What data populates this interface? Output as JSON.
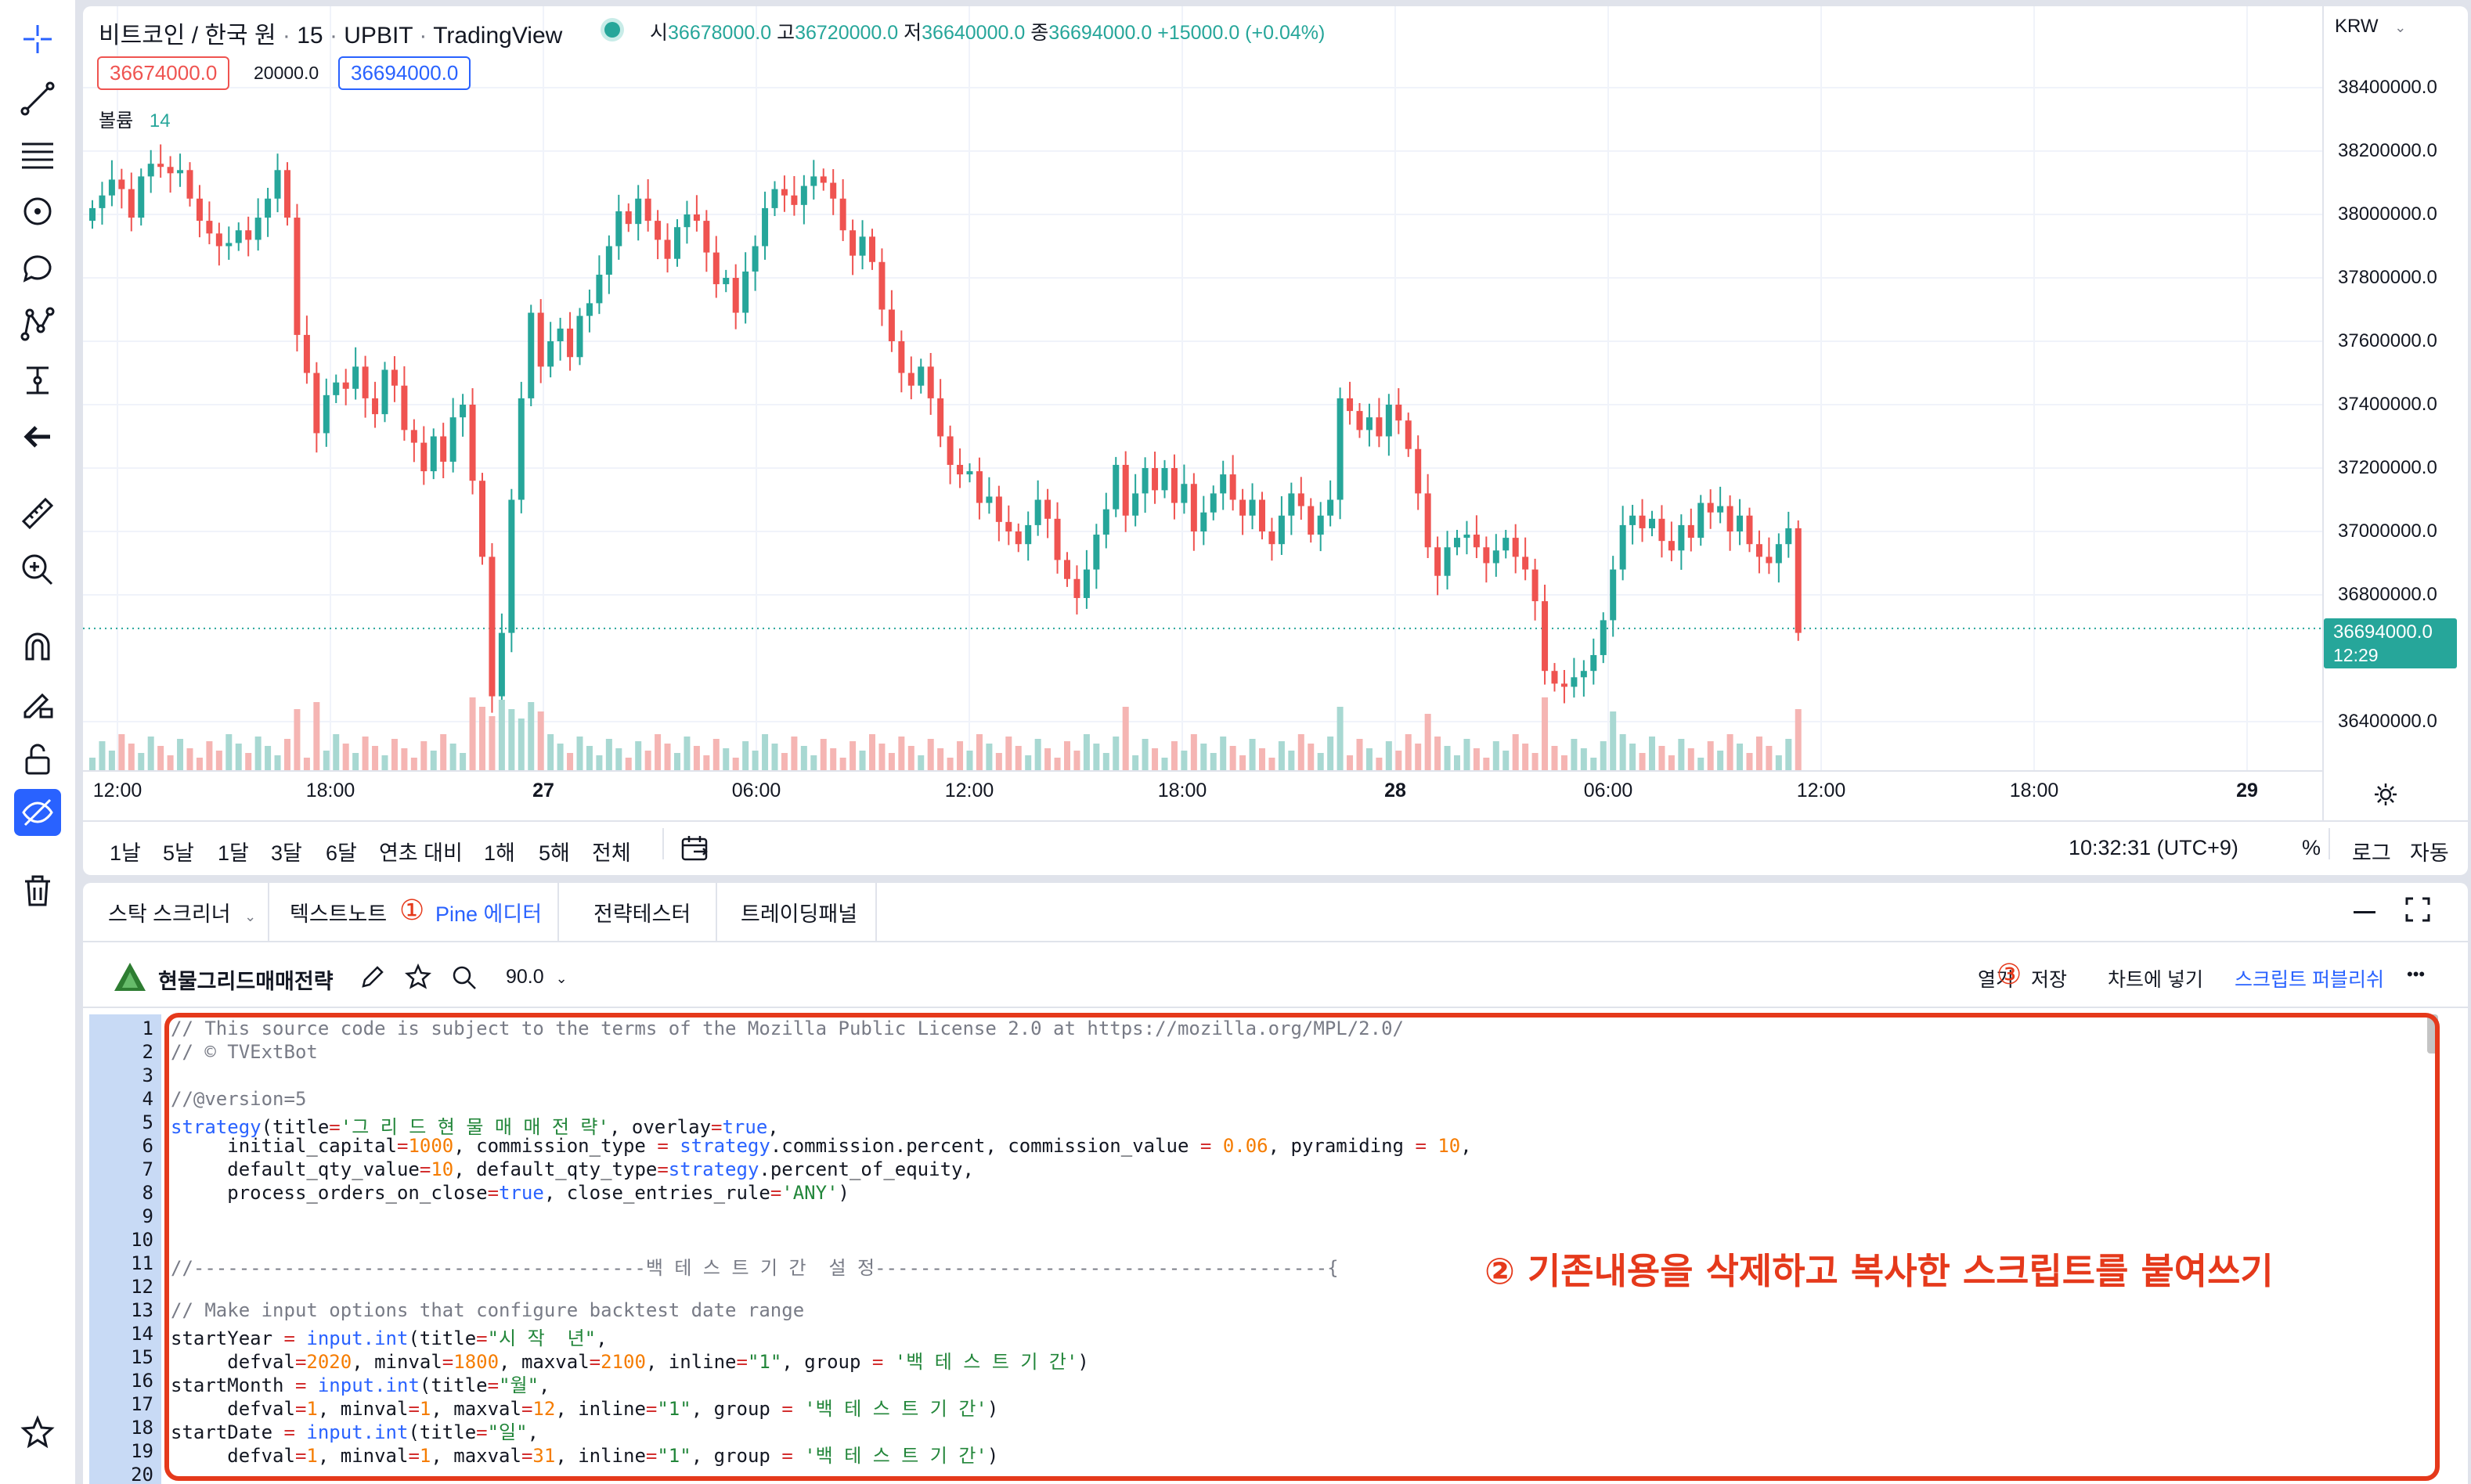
{
  "left_toolbar": {
    "icons": [
      "crosshair-icon",
      "trend-line-icon",
      "horizontal-lines-icon",
      "circle-dot-icon",
      "comment-icon",
      "pattern-icon",
      "measure-arrow-icon",
      "back-arrow-icon",
      "ruler-icon",
      "zoom-in-icon",
      "magnet-icon",
      "lock-pencil-icon",
      "unlock-icon",
      "eye-strike-icon",
      "trash-icon",
      "star-icon"
    ]
  },
  "chart": {
    "symbol_title": "비트코인 / 한국 원",
    "interval": "15",
    "exchange": "UPBIT",
    "source": "TradingView",
    "ohlc": {
      "open_label": "시",
      "open": "36678000.0",
      "high_label": "고",
      "high": "36720000.0",
      "low_label": "저",
      "low": "36640000.0",
      "close_label": "종",
      "close": "36694000.0",
      "change": "+15000.0 (+0.04%)"
    },
    "bid": "36674000.0",
    "spread": "20000.0",
    "ask": "36694000.0",
    "volume_label": "볼륨",
    "volume_value": "14",
    "currency": "KRW",
    "current_price": "36694000.0",
    "countdown": "12:29",
    "y_ticks": [
      "38400000.0",
      "38200000.0",
      "38000000.0",
      "37800000.0",
      "37600000.0",
      "37400000.0",
      "37200000.0",
      "37000000.0",
      "36800000.0",
      "36400000.0"
    ],
    "x_ticks": [
      {
        "label": "12:00",
        "bold": false
      },
      {
        "label": "18:00",
        "bold": false
      },
      {
        "label": "27",
        "bold": true
      },
      {
        "label": "06:00",
        "bold": false
      },
      {
        "label": "12:00",
        "bold": false
      },
      {
        "label": "18:00",
        "bold": false
      },
      {
        "label": "28",
        "bold": true
      },
      {
        "label": "06:00",
        "bold": false
      },
      {
        "label": "12:00",
        "bold": false
      },
      {
        "label": "18:00",
        "bold": false
      },
      {
        "label": "29",
        "bold": true
      }
    ],
    "ranges": [
      "1날",
      "5날",
      "1달",
      "3달",
      "6달",
      "연초 대비",
      "1해",
      "5해",
      "전체"
    ],
    "clock": "10:32:31 (UTC+9)",
    "percent_label": "%",
    "log_label": "로그",
    "auto_label": "자동",
    "colors": {
      "up": "#26a69a",
      "down": "#ef5350",
      "up_vol": "#a8d8d2",
      "down_vol": "#f5b5b3"
    }
  },
  "chart_data": {
    "type": "candlestick",
    "description_free": true,
    "y_axis_unit": "KRW",
    "ylim": [
      36300000,
      38500000
    ],
    "close_series": [
      38020000,
      38060000,
      38110000,
      38080000,
      37990000,
      38120000,
      38160000,
      38150000,
      38130000,
      38140000,
      38050000,
      37980000,
      37940000,
      37900000,
      37910000,
      37950000,
      37920000,
      37990000,
      38050000,
      38140000,
      37990000,
      37620000,
      37500000,
      37310000,
      37430000,
      37470000,
      37450000,
      37520000,
      37420000,
      37370000,
      37510000,
      37460000,
      37320000,
      37280000,
      37190000,
      37300000,
      37220000,
      37360000,
      37400000,
      37160000,
      36920000,
      36480000,
      36680000,
      37100000,
      37420000,
      37690000,
      37520000,
      37600000,
      37640000,
      37550000,
      37680000,
      37720000,
      37810000,
      37900000,
      38010000,
      37970000,
      38050000,
      37980000,
      37920000,
      37860000,
      37960000,
      38000000,
      37980000,
      37880000,
      37780000,
      37800000,
      37690000,
      37820000,
      37900000,
      38020000,
      38080000,
      38060000,
      38030000,
      38090000,
      38120000,
      38100000,
      38050000,
      37950000,
      37870000,
      37930000,
      37850000,
      37700000,
      37600000,
      37500000,
      37460000,
      37520000,
      37420000,
      37300000,
      37210000,
      37180000,
      37190000,
      37090000,
      37110000,
      37030000,
      37000000,
      36960000,
      37020000,
      37100000,
      37040000,
      36910000,
      36850000,
      36790000,
      36880000,
      36990000,
      37070000,
      37210000,
      37050000,
      37120000,
      37200000,
      37130000,
      37200000,
      37090000,
      37150000,
      37000000,
      37060000,
      37120000,
      37180000,
      37100000,
      37050000,
      37100000,
      37000000,
      36960000,
      37050000,
      37120000,
      37080000,
      36990000,
      37050000,
      37100000,
      37420000,
      37380000,
      37320000,
      37360000,
      37300000,
      37400000,
      37350000,
      37260000,
      37120000,
      36950000,
      36860000,
      36950000,
      36980000,
      36990000,
      36950000,
      36900000,
      36940000,
      36980000,
      36920000,
      36880000,
      36780000,
      36560000,
      36520000,
      36510000,
      36540000,
      36560000,
      36610000,
      36720000,
      36880000,
      37020000,
      37050000,
      37010000,
      37040000,
      36970000,
      36940000,
      37020000,
      36980000,
      37090000,
      37060000,
      37080000,
      37000000,
      37050000,
      36960000,
      36920000,
      36900000,
      36960000,
      37010000,
      36680000
    ]
  },
  "editor": {
    "tabs": [
      "스탁 스크리너",
      "텍스트노트",
      "Pine 에디터",
      "전략테스터",
      "트레이딩패널"
    ],
    "active_tab_index": 2,
    "marker_1": "①",
    "script_name": "현물그리드매매전략",
    "version": "90.0",
    "actions": {
      "open": "열기",
      "save": "저장",
      "add_to_chart": "차트에 넣기",
      "publish": "스크립트 퍼블리쉬",
      "more": "•••"
    },
    "marker_3": "③",
    "annotation": "② 기존내용을 삭제하고 복사한 스크립트를 붙여쓰기",
    "line_numbers": [
      "1",
      "2",
      "3",
      "4",
      "5",
      "6",
      "7",
      "8",
      "9",
      "10",
      "11",
      "12",
      "13",
      "14",
      "15",
      "16",
      "17",
      "18",
      "19",
      "20"
    ],
    "code_lines": [
      "// This source code is subject to the terms of the Mozilla Public License 2.0 at https://mozilla.org/MPL/2.0/",
      "// © TVExtBot",
      "",
      "//@version=5",
      "strategy(title='그 리 드 현 물 매 매 전 략', overlay=true,",
      "     initial_capital=1000, commission_type = strategy.commission.percent, commission_value = 0.06, pyramiding = 10,",
      "     default_qty_value=10, default_qty_type=strategy.percent_of_equity,",
      "     process_orders_on_close=true, close_entries_rule='ANY')",
      "",
      "",
      "//----------------------------------------백 테 스 트 기 간  설 정----------------------------------------{",
      "",
      "// Make input options that configure backtest date range",
      "startYear = input.int(title=\"시 작  년\",",
      "     defval=2020, minval=1800, maxval=2100, inline=\"1\", group = '백 테 스 트 기 간')",
      "startMonth = input.int(title=\"월\",",
      "     defval=1, minval=1, maxval=12, inline=\"1\", group = '백 테 스 트 기 간')",
      "startDate = input.int(title=\"일\",",
      "     defval=1, minval=1, maxval=31, inline=\"1\", group = '백 테 스 트 기 간')",
      ""
    ]
  }
}
